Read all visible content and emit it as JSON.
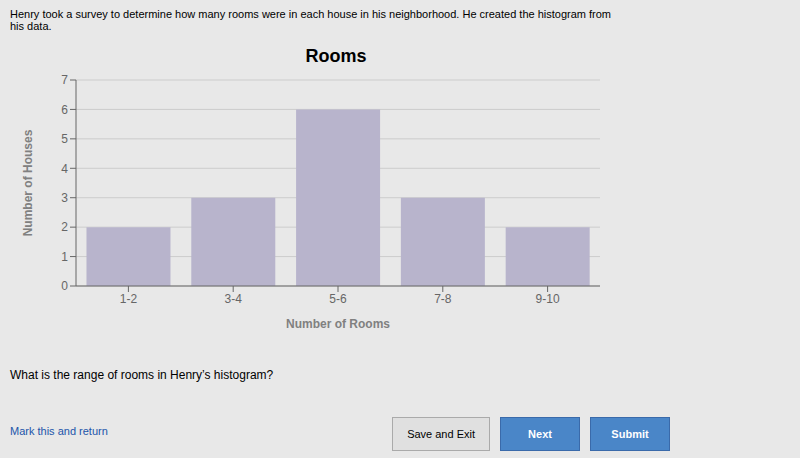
{
  "chart_data": {
    "type": "bar",
    "title": "Rooms",
    "xlabel": "Number of Rooms",
    "ylabel": "Number of Houses",
    "categories": [
      "1-2",
      "3-4",
      "5-6",
      "7-8",
      "9-10"
    ],
    "values": [
      2,
      3,
      6,
      3,
      2
    ],
    "color": "#b8b4cc",
    "ylim": [
      0,
      7
    ],
    "yticks": [
      0,
      1,
      2,
      3,
      4,
      5,
      6,
      7
    ],
    "grid": true,
    "annotations": [
      "Henry took a survey to determine how many rooms were in each house in his neighborhood. He created the histogram from\nhis data.",
      "What is the range of rooms in Henry’s histogram?",
      "Mark this and return",
      "Save and Exit",
      "Next",
      "Submit"
    ]
  }
}
